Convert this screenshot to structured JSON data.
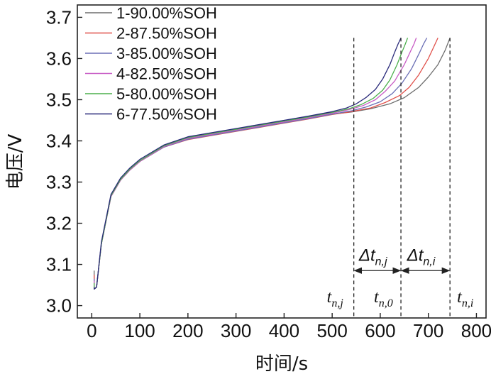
{
  "chart_data": {
    "type": "line",
    "xlabel": "时间/s",
    "ylabel": "电压/V",
    "xlim": [
      -30,
      820
    ],
    "ylim": [
      2.97,
      3.73
    ],
    "xticks": [
      0,
      100,
      200,
      300,
      400,
      500,
      600,
      700,
      800
    ],
    "yticks": [
      3.0,
      3.1,
      3.2,
      3.3,
      3.4,
      3.5,
      3.6,
      3.7
    ],
    "xtick_labels": [
      "0",
      "100",
      "200",
      "300",
      "400",
      "500",
      "600",
      "700",
      "800"
    ],
    "ytick_labels": [
      "3.0",
      "3.1",
      "3.2",
      "3.3",
      "3.4",
      "3.5",
      "3.6",
      "3.7"
    ],
    "grid": false,
    "legend_position": "top-left",
    "series": [
      {
        "name": "1-90.00%SOH",
        "color": "#6e6e6e",
        "start_y": 3.085,
        "x": [
          5,
          10,
          20,
          40,
          60,
          80,
          100,
          150,
          200,
          250,
          300,
          350,
          400,
          450,
          500,
          540,
          580,
          620,
          650,
          680,
          700,
          720,
          735,
          745
        ],
        "y": [
          3.04,
          3.045,
          3.15,
          3.265,
          3.305,
          3.33,
          3.35,
          3.385,
          3.405,
          3.415,
          3.425,
          3.435,
          3.445,
          3.455,
          3.465,
          3.47,
          3.478,
          3.49,
          3.505,
          3.53,
          3.555,
          3.585,
          3.62,
          3.65
        ]
      },
      {
        "name": "2-87.50%SOH",
        "color": "#e0504a",
        "start_y": 3.075,
        "x": [
          5,
          10,
          20,
          40,
          60,
          80,
          100,
          150,
          200,
          250,
          300,
          350,
          400,
          450,
          500,
          540,
          580,
          610,
          640,
          660,
          680,
          700,
          710,
          720
        ],
        "y": [
          3.04,
          3.045,
          3.15,
          3.265,
          3.305,
          3.33,
          3.35,
          3.385,
          3.403,
          3.413,
          3.423,
          3.433,
          3.443,
          3.453,
          3.464,
          3.471,
          3.48,
          3.493,
          3.51,
          3.53,
          3.56,
          3.6,
          3.625,
          3.65
        ]
      },
      {
        "name": "3-85.00%SOH",
        "color": "#6b6fb5",
        "start_y": 3.065,
        "x": [
          5,
          10,
          20,
          40,
          60,
          80,
          100,
          150,
          200,
          250,
          300,
          350,
          400,
          450,
          500,
          540,
          570,
          600,
          625,
          645,
          665,
          680,
          690,
          697
        ],
        "y": [
          3.04,
          3.045,
          3.15,
          3.265,
          3.305,
          3.33,
          3.35,
          3.385,
          3.404,
          3.414,
          3.424,
          3.434,
          3.444,
          3.454,
          3.465,
          3.473,
          3.482,
          3.495,
          3.515,
          3.54,
          3.575,
          3.61,
          3.635,
          3.65
        ]
      },
      {
        "name": "4-82.50%SOH",
        "color": "#c85cc5",
        "start_y": 3.06,
        "x": [
          5,
          10,
          20,
          40,
          60,
          80,
          100,
          150,
          200,
          250,
          300,
          350,
          400,
          450,
          500,
          535,
          565,
          590,
          610,
          630,
          650,
          662,
          670,
          675
        ],
        "y": [
          3.04,
          3.045,
          3.15,
          3.265,
          3.305,
          3.33,
          3.35,
          3.386,
          3.406,
          3.416,
          3.426,
          3.436,
          3.446,
          3.456,
          3.467,
          3.476,
          3.486,
          3.5,
          3.52,
          3.545,
          3.585,
          3.615,
          3.635,
          3.65
        ]
      },
      {
        "name": "5-80.00%SOH",
        "color": "#4caf4c",
        "start_y": 3.055,
        "x": [
          5,
          10,
          20,
          40,
          60,
          80,
          100,
          150,
          200,
          250,
          300,
          350,
          400,
          450,
          500,
          535,
          560,
          585,
          605,
          620,
          635,
          645,
          652,
          657
        ],
        "y": [
          3.04,
          3.045,
          3.15,
          3.267,
          3.307,
          3.332,
          3.352,
          3.388,
          3.408,
          3.418,
          3.428,
          3.438,
          3.448,
          3.458,
          3.469,
          3.478,
          3.488,
          3.503,
          3.523,
          3.548,
          3.585,
          3.615,
          3.635,
          3.65
        ]
      },
      {
        "name": "6-77.50%SOH",
        "color": "#2a2a7a",
        "start_y": 3.045,
        "x": [
          5,
          10,
          20,
          40,
          60,
          80,
          100,
          150,
          200,
          250,
          300,
          350,
          400,
          450,
          500,
          530,
          550,
          570,
          590,
          605,
          620,
          630,
          637,
          643
        ],
        "y": [
          3.04,
          3.045,
          3.155,
          3.27,
          3.31,
          3.335,
          3.355,
          3.39,
          3.41,
          3.42,
          3.43,
          3.44,
          3.45,
          3.46,
          3.471,
          3.48,
          3.49,
          3.505,
          3.525,
          3.55,
          3.585,
          3.615,
          3.635,
          3.65
        ]
      }
    ],
    "annotations": {
      "vlines": [
        {
          "x": 545,
          "label_main": "t",
          "label_sub": "n,j"
        },
        {
          "x": 643,
          "label_main": "t",
          "label_sub": "n,0"
        },
        {
          "x": 745,
          "label_main": "t",
          "label_sub": "n,i"
        }
      ],
      "arrows": [
        {
          "from_x": 545,
          "to_x": 643,
          "y": 3.085,
          "label_main": "Δt",
          "label_sub": "n,j"
        },
        {
          "from_x": 643,
          "to_x": 745,
          "y": 3.085,
          "label_main": "Δt",
          "label_sub": "n,i"
        }
      ]
    }
  }
}
